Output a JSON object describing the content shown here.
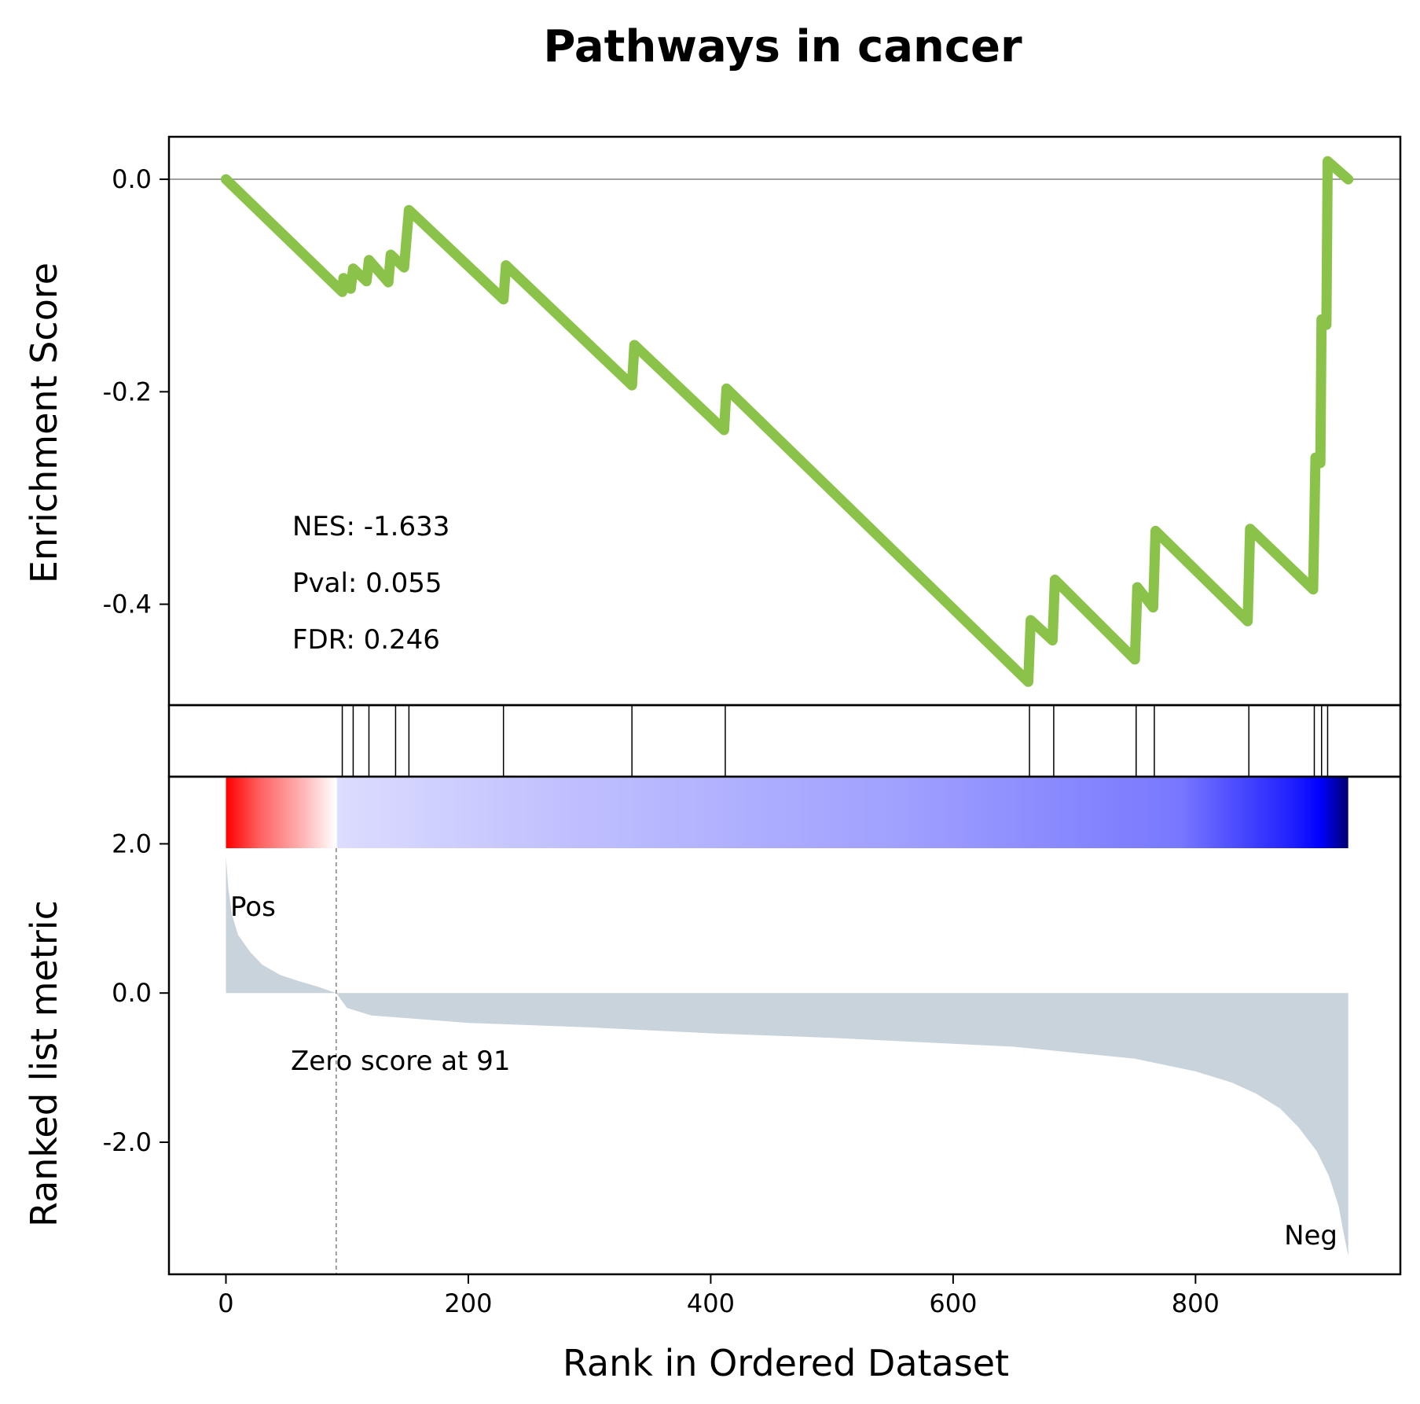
{
  "chart_data": {
    "type": "line",
    "title": "Pathways in cancer",
    "xlabel": "Rank in Ordered Dataset",
    "xlim": [
      -47,
      969
    ],
    "x_ticks": [
      0,
      200,
      400,
      600,
      800
    ],
    "colors": {
      "es_line": "#8bc34a",
      "hit_line": "#000000",
      "metric_fill": "#c8d3dc",
      "pos_label": "#ff0000",
      "neg_label": "#0000ff",
      "zero_line": "#808080"
    },
    "enrichment_panel": {
      "ylabel": "Enrichment Score",
      "ylim": [
        -0.495,
        0.04
      ],
      "y_ticks": [
        0.0,
        -0.2,
        -0.4
      ],
      "y_tick_labels": [
        "0.0",
        "-0.2",
        "-0.4"
      ],
      "series": [
        {
          "points": [
            [
              0,
              0.0
            ],
            [
              96,
              -0.106
            ],
            [
              97,
              -0.093
            ],
            [
              103,
              -0.103
            ],
            [
              105,
              -0.084
            ],
            [
              116,
              -0.096
            ],
            [
              118,
              -0.076
            ],
            [
              134,
              -0.097
            ],
            [
              136,
              -0.071
            ],
            [
              147,
              -0.083
            ],
            [
              151,
              -0.029
            ],
            [
              229,
              -0.113
            ],
            [
              231,
              -0.081
            ],
            [
              335,
              -0.194
            ],
            [
              337,
              -0.156
            ],
            [
              411,
              -0.236
            ],
            [
              413,
              -0.197
            ],
            [
              662,
              -0.473
            ],
            [
              664,
              -0.415
            ],
            [
              682,
              -0.434
            ],
            [
              684,
              -0.377
            ],
            [
              750,
              -0.452
            ],
            [
              752,
              -0.384
            ],
            [
              765,
              -0.403
            ],
            [
              767,
              -0.331
            ],
            [
              843,
              -0.416
            ],
            [
              845,
              -0.329
            ],
            [
              897,
              -0.386
            ],
            [
              899,
              -0.262
            ],
            [
              903,
              -0.267
            ],
            [
              904,
              -0.132
            ],
            [
              908,
              -0.137
            ],
            [
              909,
              0.017
            ],
            [
              926,
              0.0
            ]
          ]
        }
      ],
      "annotations": [
        "NES: -1.633",
        "Pval: 0.055",
        "FDR: 0.246"
      ]
    },
    "hits_panel": {
      "hit_ranks": [
        96,
        105,
        118,
        140,
        151,
        229,
        335,
        412,
        663,
        683,
        751,
        766,
        844,
        898,
        904,
        909
      ]
    },
    "metric_panel": {
      "ylabel": "Ranked list metric",
      "ylim": [
        -3.77,
        2.9
      ],
      "y_ticks": [
        2.0,
        0.0,
        -2.0
      ],
      "y_tick_labels": [
        "2.0",
        "0.0",
        "-2.0"
      ],
      "metric_curve": [
        [
          0,
          1.82
        ],
        [
          2,
          1.4
        ],
        [
          5,
          1.05
        ],
        [
          10,
          0.78
        ],
        [
          20,
          0.55
        ],
        [
          30,
          0.38
        ],
        [
          45,
          0.24
        ],
        [
          60,
          0.16
        ],
        [
          75,
          0.09
        ],
        [
          91,
          0.0
        ],
        [
          100,
          -0.2
        ],
        [
          120,
          -0.3
        ],
        [
          200,
          -0.4
        ],
        [
          300,
          -0.46
        ],
        [
          400,
          -0.54
        ],
        [
          500,
          -0.6
        ],
        [
          600,
          -0.68
        ],
        [
          650,
          -0.72
        ],
        [
          700,
          -0.8
        ],
        [
          750,
          -0.88
        ],
        [
          800,
          -1.05
        ],
        [
          830,
          -1.2
        ],
        [
          850,
          -1.35
        ],
        [
          870,
          -1.55
        ],
        [
          885,
          -1.8
        ],
        [
          900,
          -2.12
        ],
        [
          910,
          -2.45
        ],
        [
          918,
          -2.85
        ],
        [
          922,
          -3.2
        ],
        [
          926,
          -3.52
        ]
      ],
      "zero_cross_rank": 91,
      "zero_label": "Zero score at 91",
      "pos_label": "Pos",
      "neg_label": "Neg"
    }
  }
}
